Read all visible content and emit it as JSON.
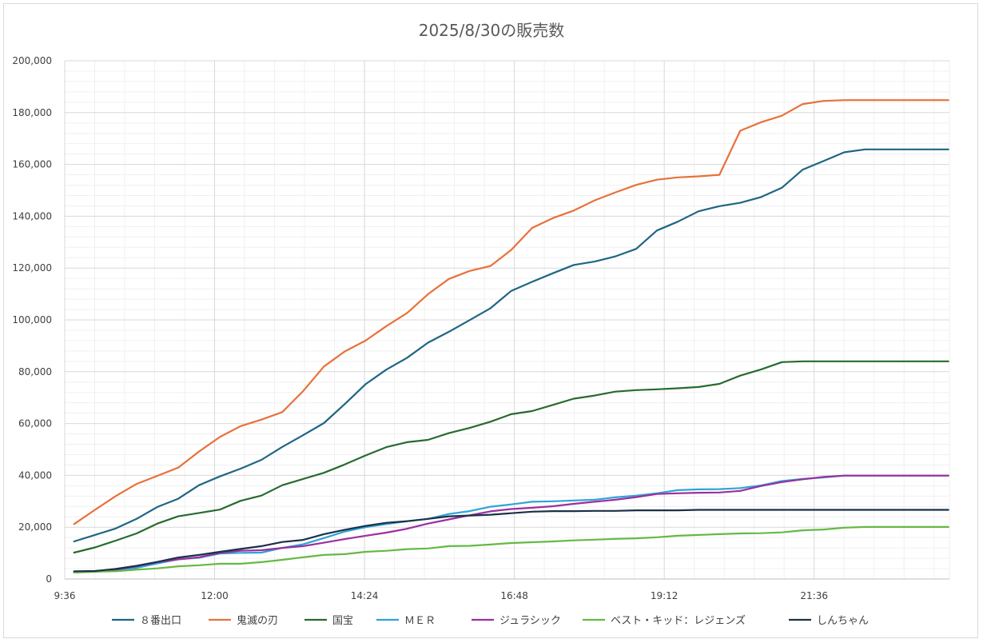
{
  "chart_data": {
    "type": "line",
    "title": "2025/8/30の販売数",
    "xlabel": "",
    "ylabel": "",
    "ylim": [
      0,
      200000
    ],
    "y_ticks": [
      0,
      20000,
      40000,
      60000,
      80000,
      100000,
      120000,
      140000,
      160000,
      180000,
      200000
    ],
    "y_tick_labels": [
      "0",
      "20,000",
      "40,000",
      "60,000",
      "80,000",
      "100,000",
      "120,000",
      "140,000",
      "160,000",
      "180,000",
      "200,000"
    ],
    "x_tick_labels": [
      "9:36",
      "12:00",
      "14:24",
      "16:48",
      "19:12",
      "21:36"
    ],
    "x_tick_minutes": [
      576,
      720,
      864,
      1008,
      1152,
      1296
    ],
    "xlim_minutes": [
      576,
      1426
    ],
    "grid": true,
    "legend_position": "bottom",
    "x": [
      585,
      605,
      625,
      645,
      665,
      685,
      705,
      725,
      745,
      765,
      785,
      805,
      825,
      845,
      865,
      885,
      905,
      925,
      945,
      965,
      985,
      1005,
      1025,
      1045,
      1065,
      1085,
      1105,
      1125,
      1145,
      1165,
      1185,
      1205,
      1225,
      1245,
      1265,
      1285,
      1305,
      1325,
      1345,
      1365,
      1385,
      1405,
      1425
    ],
    "series": [
      {
        "name": "８番出口",
        "color": "#1f6584",
        "values": [
          14500,
          17000,
          19500,
          23200,
          27800,
          31000,
          36200,
          39600,
          42600,
          46000,
          51000,
          55500,
          60200,
          67500,
          75200,
          80800,
          85400,
          91200,
          95400,
          99900,
          104500,
          111200,
          114700,
          118000,
          121200,
          122500,
          124500,
          127400,
          134500,
          137900,
          141900,
          143900,
          145200,
          147400,
          151000,
          158000,
          161300,
          164700,
          165800,
          165800,
          165800,
          165800,
          165800
        ]
      },
      {
        "name": "鬼滅の刃",
        "color": "#e8713a",
        "values": [
          21200,
          26700,
          32000,
          36700,
          39800,
          43000,
          49200,
          54800,
          59000,
          61500,
          64400,
          72500,
          82000,
          87800,
          92000,
          97600,
          102700,
          109900,
          115800,
          118900,
          120800,
          127000,
          135500,
          139300,
          142200,
          146100,
          149200,
          152100,
          154100,
          155000,
          155400,
          156000,
          173000,
          176300,
          178800,
          183300,
          184500,
          184800,
          184800,
          184800,
          184800,
          184800,
          184800
        ]
      },
      {
        "name": "国宝",
        "color": "#276b2f",
        "values": [
          10200,
          12200,
          14800,
          17600,
          21400,
          24200,
          25500,
          26800,
          30200,
          32200,
          36200,
          38600,
          41000,
          44200,
          47700,
          50900,
          52800,
          53700,
          56300,
          58300,
          60700,
          63600,
          64800,
          67200,
          69600,
          70800,
          72300,
          72900,
          73200,
          73600,
          74100,
          75300,
          78500,
          80900,
          83700,
          84000,
          84000,
          84000,
          84000,
          84000,
          84000,
          84000,
          84000
        ]
      },
      {
        "name": "ＭＥＲ",
        "color": "#2fa4d8",
        "values": [
          2600,
          2900,
          3300,
          4300,
          6000,
          7600,
          8200,
          9800,
          10100,
          10200,
          12000,
          13400,
          15800,
          18300,
          20000,
          21200,
          22300,
          23200,
          25100,
          26200,
          27900,
          28800,
          29800,
          30000,
          30300,
          30600,
          31500,
          32200,
          33100,
          34300,
          34600,
          34700,
          35100,
          36100,
          37800,
          38600,
          39200,
          39900,
          39900,
          39900,
          39900,
          39900,
          39900
        ]
      },
      {
        "name": "ジュラシック",
        "color": "#9b2f9e",
        "values": [
          2600,
          2900,
          3600,
          4900,
          6500,
          7600,
          8400,
          10100,
          10900,
          11100,
          12000,
          12700,
          14000,
          15400,
          16700,
          17900,
          19400,
          21400,
          23000,
          24600,
          26100,
          27000,
          27500,
          28100,
          29000,
          29800,
          30600,
          31600,
          32800,
          33100,
          33300,
          33400,
          34000,
          35900,
          37400,
          38500,
          39400,
          39900,
          39900,
          39900,
          39900,
          39900,
          39900
        ]
      },
      {
        "name": "ベスト・キッド：レジェンズ",
        "color": "#66b845",
        "values": [
          2500,
          2800,
          3000,
          3600,
          4100,
          4900,
          5300,
          5900,
          5900,
          6500,
          7400,
          8400,
          9300,
          9600,
          10500,
          10900,
          11500,
          11800,
          12700,
          12800,
          13300,
          13900,
          14200,
          14500,
          14900,
          15200,
          15500,
          15700,
          16100,
          16700,
          17000,
          17300,
          17600,
          17700,
          18000,
          18800,
          19100,
          19800,
          20100,
          20100,
          20100,
          20100,
          20100
        ]
      },
      {
        "name": "しんちゃん",
        "color": "#1b3148",
        "values": [
          3000,
          3100,
          3900,
          5100,
          6600,
          8300,
          9300,
          10500,
          11600,
          12700,
          14300,
          15100,
          17300,
          19000,
          20500,
          21700,
          22300,
          23200,
          24200,
          24500,
          24800,
          25400,
          26000,
          26200,
          26200,
          26300,
          26300,
          26500,
          26500,
          26500,
          26700,
          26700,
          26700,
          26700,
          26700,
          26700,
          26700,
          26700,
          26700,
          26700,
          26700,
          26700,
          26700
        ]
      }
    ]
  }
}
